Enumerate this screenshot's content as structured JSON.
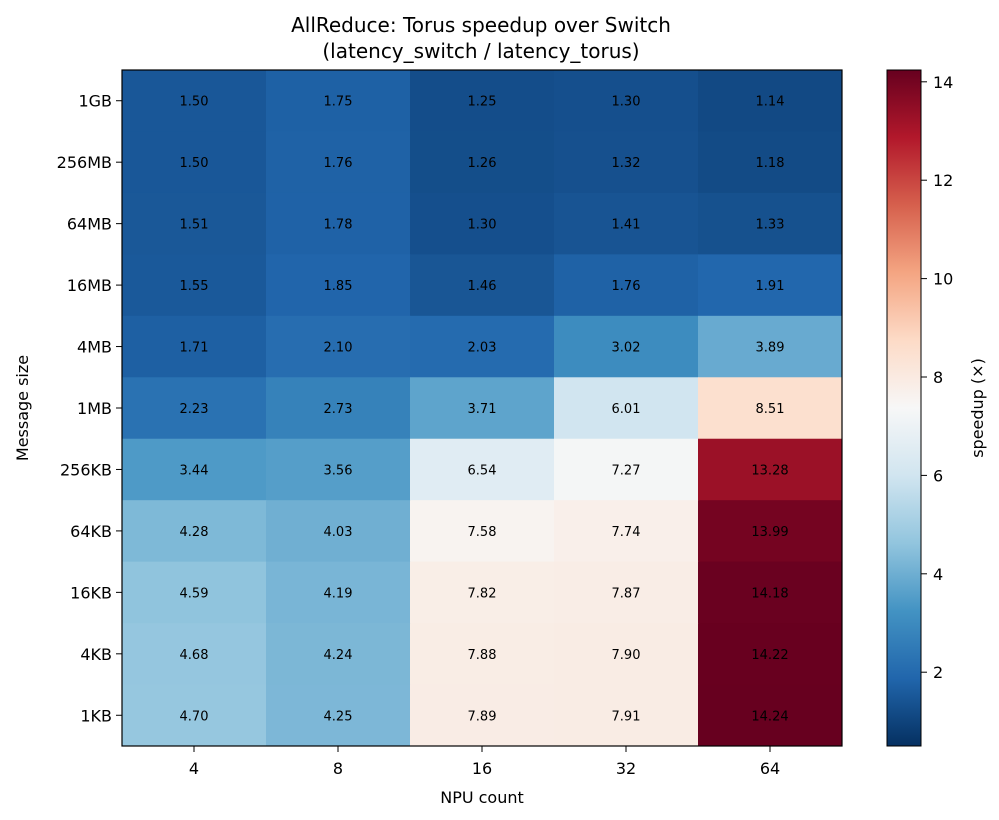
{
  "chart_data": {
    "type": "heatmap",
    "title_lines": [
      "AllReduce: Torus speedup over Switch",
      "(latency_switch / latency_torus)"
    ],
    "xlabel": "NPU count",
    "ylabel": "Message size",
    "x_categories": [
      "4",
      "8",
      "16",
      "32",
      "64"
    ],
    "y_categories": [
      "1GB",
      "256MB",
      "64MB",
      "16MB",
      "4MB",
      "1MB",
      "256KB",
      "64KB",
      "16KB",
      "4KB",
      "1KB"
    ],
    "values": [
      [
        1.5,
        1.75,
        1.25,
        1.3,
        1.14
      ],
      [
        1.5,
        1.76,
        1.26,
        1.32,
        1.18
      ],
      [
        1.51,
        1.78,
        1.3,
        1.41,
        1.33
      ],
      [
        1.55,
        1.85,
        1.46,
        1.76,
        1.91
      ],
      [
        1.71,
        2.1,
        2.03,
        3.02,
        3.89
      ],
      [
        2.23,
        2.73,
        3.71,
        6.01,
        8.51
      ],
      [
        3.44,
        3.56,
        6.54,
        7.27,
        13.28
      ],
      [
        4.28,
        4.03,
        7.58,
        7.74,
        13.99
      ],
      [
        4.59,
        4.19,
        7.82,
        7.87,
        14.18
      ],
      [
        4.68,
        4.24,
        7.88,
        7.9,
        14.22
      ],
      [
        4.7,
        4.25,
        7.89,
        7.91,
        14.24
      ]
    ],
    "value_format": "2 decimals",
    "colormap": "RdBu_r",
    "colorbar": {
      "label": "speedup (×)",
      "range": [
        0.5,
        14.24
      ],
      "ticks": [
        "2",
        "4",
        "6",
        "8",
        "10",
        "12",
        "14"
      ]
    }
  }
}
